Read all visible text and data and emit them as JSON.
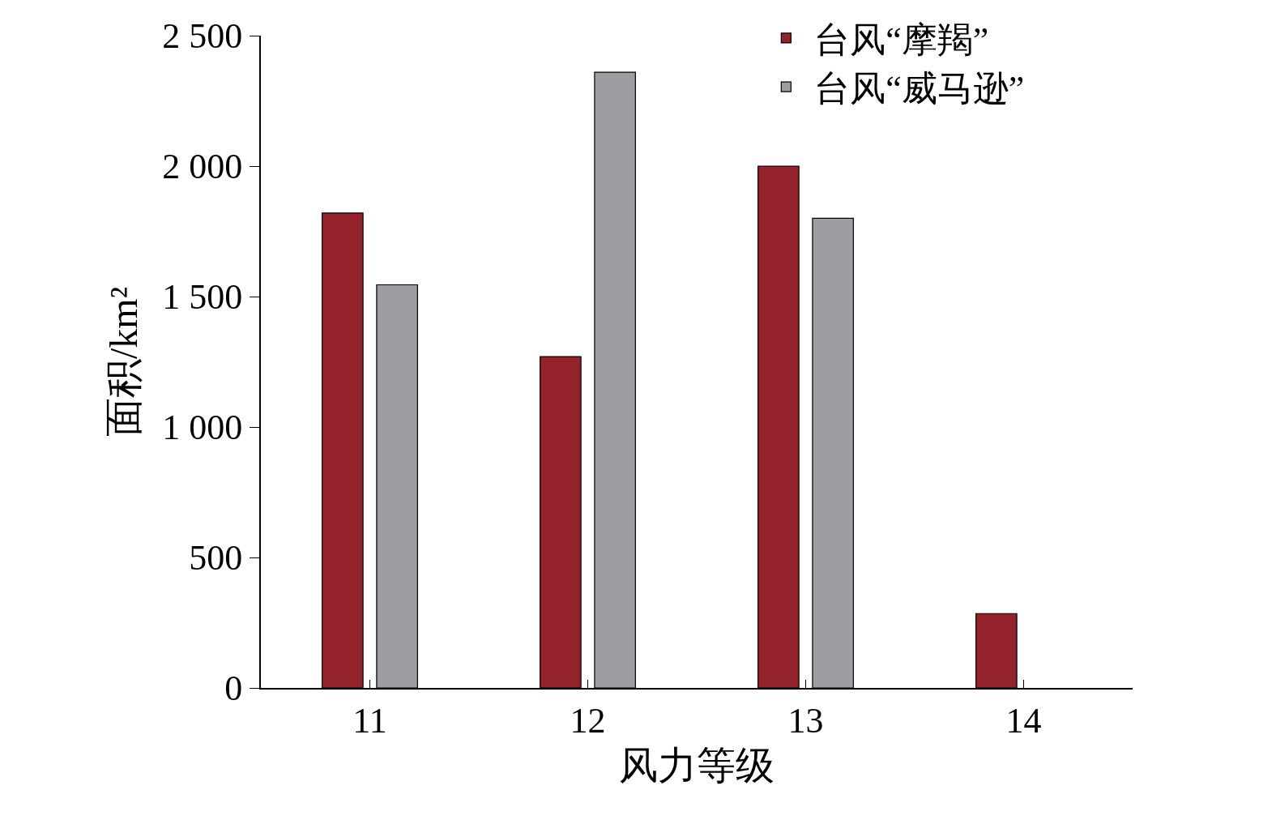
{
  "chart_data": {
    "type": "bar",
    "xlabel": "风力等级",
    "ylabel": "面积/km²",
    "categories": [
      "11",
      "12",
      "13",
      "14"
    ],
    "series": [
      {
        "name": "台风“摩羯”",
        "color": "#93222a",
        "values": [
          1820,
          1270,
          2000,
          285
        ]
      },
      {
        "name": "台风“威马逊”",
        "color": "#9d9ea2",
        "values": [
          1545,
          2360,
          1800,
          null
        ]
      }
    ],
    "ylim": [
      0,
      2500
    ],
    "yticks": [
      0,
      500,
      {
        "value": 1000,
        "label": "1 000"
      },
      {
        "value": 1500,
        "label": "1 500"
      },
      {
        "value": 2000,
        "label": "2 000"
      },
      {
        "value": 2500,
        "label": "2 500"
      }
    ],
    "legend": "top right"
  }
}
